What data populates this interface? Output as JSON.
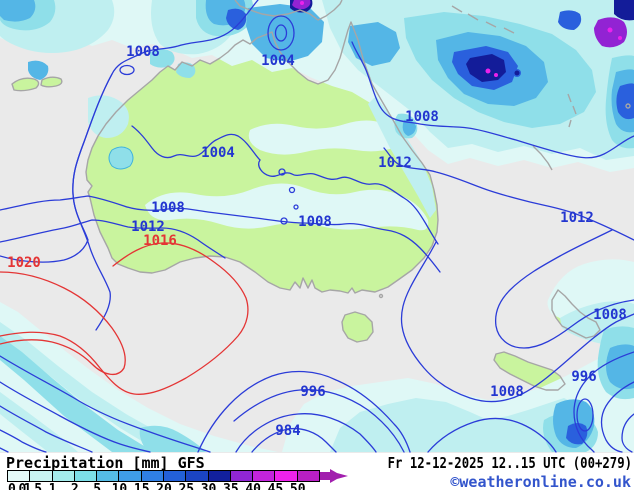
{
  "header": {
    "title": "Precipitation [mm] GFS",
    "datetime": "Fr 12-12-2025 12..15 UTC (00+279)",
    "copyright": "©weatheronline.co.uk"
  },
  "legend": {
    "stops": [
      {
        "label": "0.1",
        "color": "#e4faf8"
      },
      {
        "label": "0.5",
        "color": "#c8f4f2"
      },
      {
        "label": "1",
        "color": "#a4ecec"
      },
      {
        "label": "2",
        "color": "#7cdee8"
      },
      {
        "label": "5",
        "color": "#55bce6"
      },
      {
        "label": "10",
        "color": "#3f9ee8"
      },
      {
        "label": "15",
        "color": "#2f7fe4"
      },
      {
        "label": "20",
        "color": "#2360d8"
      },
      {
        "label": "25",
        "color": "#1b44c4"
      },
      {
        "label": "30",
        "color": "#12209e"
      },
      {
        "label": "35",
        "color": "#9126d4"
      },
      {
        "label": "40",
        "color": "#c324dc"
      },
      {
        "label": "45",
        "color": "#ee22ec"
      },
      {
        "label": "50",
        "color": "#b81fc4"
      }
    ],
    "arrow_color": "#a21fae"
  },
  "map": {
    "palette": {
      "sea": "#eaeaea",
      "land": "#c9f49e",
      "coast": "#a6a6a6",
      "isobar_blue": "#2b3cd8",
      "isobar_red": "#e43535"
    },
    "labels": [
      {
        "text": "1008"
      },
      {
        "text": "1004"
      },
      {
        "text": "1004"
      },
      {
        "text": "1008"
      },
      {
        "text": "1012"
      },
      {
        "text": "1016"
      },
      {
        "text": "1020"
      },
      {
        "text": "1008"
      },
      {
        "text": "1008"
      },
      {
        "text": "1012"
      },
      {
        "text": "1012"
      },
      {
        "text": "1008"
      },
      {
        "text": "996"
      },
      {
        "text": "1008"
      },
      {
        "text": "996"
      },
      {
        "text": "984"
      }
    ]
  }
}
